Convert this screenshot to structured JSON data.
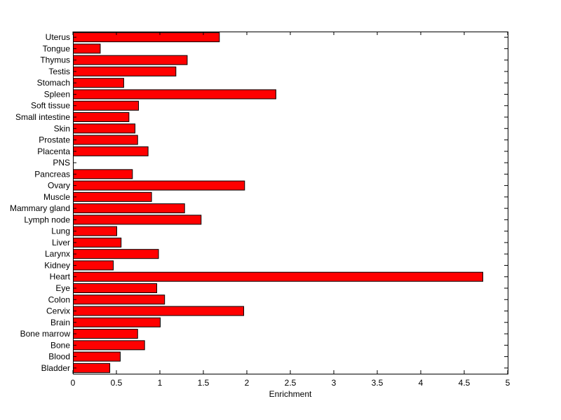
{
  "chart_data": {
    "type": "bar",
    "orientation": "horizontal",
    "title": "",
    "xlabel": "Enrichment",
    "ylabel": "",
    "xlim": [
      0,
      5
    ],
    "x_ticks": [
      0,
      0.5,
      1,
      1.5,
      2,
      2.5,
      3,
      3.5,
      4,
      4.5,
      5
    ],
    "x_tick_labels": [
      "0",
      "0.5",
      "1",
      "1.5",
      "2",
      "2.5",
      "3",
      "3.5",
      "4",
      "4.5",
      "5"
    ],
    "grid": false,
    "bar_color": "#ff0000",
    "bar_edge_color": "#000000",
    "categories": [
      "Uterus",
      "Tongue",
      "Thymus",
      "Testis",
      "Stomach",
      "Spleen",
      "Soft tissue",
      "Small intestine",
      "Skin",
      "Prostate",
      "Placenta",
      "PNS",
      "Pancreas",
      "Ovary",
      "Muscle",
      "Mammary gland",
      "Lymph node",
      "Lung",
      "Liver",
      "Larynx",
      "Kidney",
      "Heart",
      "Eye",
      "Colon",
      "Cervix",
      "Brain",
      "Bone marrow",
      "Bone",
      "Blood",
      "Bladder"
    ],
    "values": [
      1.68,
      0.31,
      1.31,
      1.18,
      0.58,
      2.33,
      0.75,
      0.64,
      0.71,
      0.74,
      0.86,
      0.0,
      0.68,
      1.97,
      0.9,
      1.28,
      1.47,
      0.5,
      0.55,
      0.98,
      0.46,
      4.71,
      0.96,
      1.05,
      1.96,
      1.0,
      0.74,
      0.82,
      0.54,
      0.42
    ]
  }
}
